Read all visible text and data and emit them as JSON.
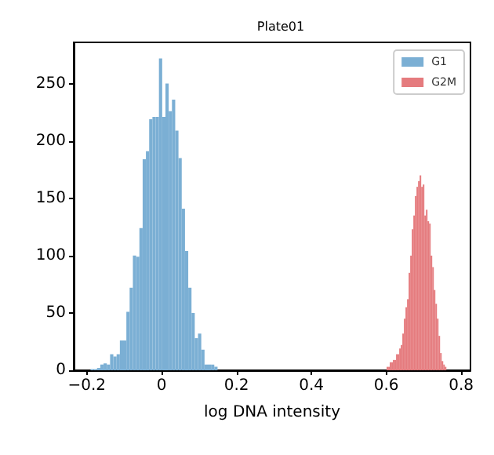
{
  "chart_data": {
    "type": "histogram",
    "title": "Plate01",
    "xlabel": "log DNA intensity",
    "bins": [
      -0.19,
      -0.1813,
      -0.1726,
      -0.1639,
      -0.1552,
      -0.1465,
      -0.1378,
      -0.1291,
      -0.1204,
      -0.1117,
      -0.103,
      -0.0943,
      -0.0856,
      -0.0769,
      -0.0682,
      -0.0595,
      -0.0508,
      -0.0421,
      -0.0334,
      -0.0247,
      -0.016,
      -0.0073,
      0.0014,
      0.0101,
      0.0188,
      0.0275,
      0.0362,
      0.0449,
      0.0536,
      0.0623,
      0.071,
      0.0797,
      0.0884,
      0.0971,
      0.1058,
      0.1145,
      0.1232,
      0.1319,
      0.1406,
      0.1493,
      0.601,
      0.6052,
      0.6094,
      0.6136,
      0.6178,
      0.622,
      0.6262,
      0.6304,
      0.6346,
      0.6388,
      0.643,
      0.6472,
      0.6514,
      0.6556,
      0.6598,
      0.664,
      0.6682,
      0.6724,
      0.6766,
      0.6808,
      0.685,
      0.6892,
      0.6934,
      0.6976,
      0.7018,
      0.706,
      0.7102,
      0.7144,
      0.7186,
      0.7228,
      0.727,
      0.7312,
      0.7354,
      0.7396,
      0.7438,
      0.748,
      0.7522,
      0.7564,
      0.7606
    ],
    "series": [
      {
        "name": "G1",
        "color": "#7bafd4",
        "values": [
          1,
          1,
          2,
          5,
          6,
          5,
          14,
          12,
          14,
          26,
          26,
          51,
          72,
          100,
          99,
          124,
          184,
          191,
          219,
          221,
          221,
          272,
          221,
          250,
          226,
          236,
          209,
          185,
          141,
          104,
          72,
          50,
          28,
          32,
          18,
          5,
          5,
          5,
          3,
          null,
          null,
          null,
          null,
          null,
          null,
          null,
          null,
          null,
          null,
          null,
          null,
          null,
          null,
          null,
          null,
          null,
          null,
          null,
          null,
          null,
          null,
          null,
          null,
          null,
          null,
          null,
          null,
          null,
          null,
          null,
          null,
          null,
          null,
          null,
          null,
          null,
          null,
          null
        ]
      },
      {
        "name": "G2M",
        "color": "#e57b7e",
        "values": [
          null,
          null,
          null,
          null,
          null,
          null,
          null,
          null,
          null,
          null,
          null,
          null,
          null,
          null,
          null,
          null,
          null,
          null,
          null,
          null,
          null,
          null,
          null,
          null,
          null,
          null,
          null,
          null,
          null,
          null,
          null,
          null,
          null,
          null,
          null,
          null,
          null,
          null,
          null,
          null,
          3,
          3,
          7,
          7,
          9,
          9,
          14,
          14,
          19,
          22,
          32,
          45,
          55,
          62,
          85,
          100,
          123,
          135,
          152,
          160,
          165,
          170,
          160,
          162,
          135,
          140,
          130,
          128,
          100,
          90,
          70,
          58,
          45,
          30,
          15,
          8,
          5,
          3
        ]
      }
    ],
    "xlim": [
      -0.235,
      0.825
    ],
    "xticks": [
      -0.2,
      0,
      0.2,
      0.4,
      0.6,
      0.8
    ],
    "ylim": [
      0,
      286
    ],
    "yticks": [
      0,
      50,
      100,
      150,
      200,
      250
    ],
    "grid": false,
    "legend": "top right"
  }
}
